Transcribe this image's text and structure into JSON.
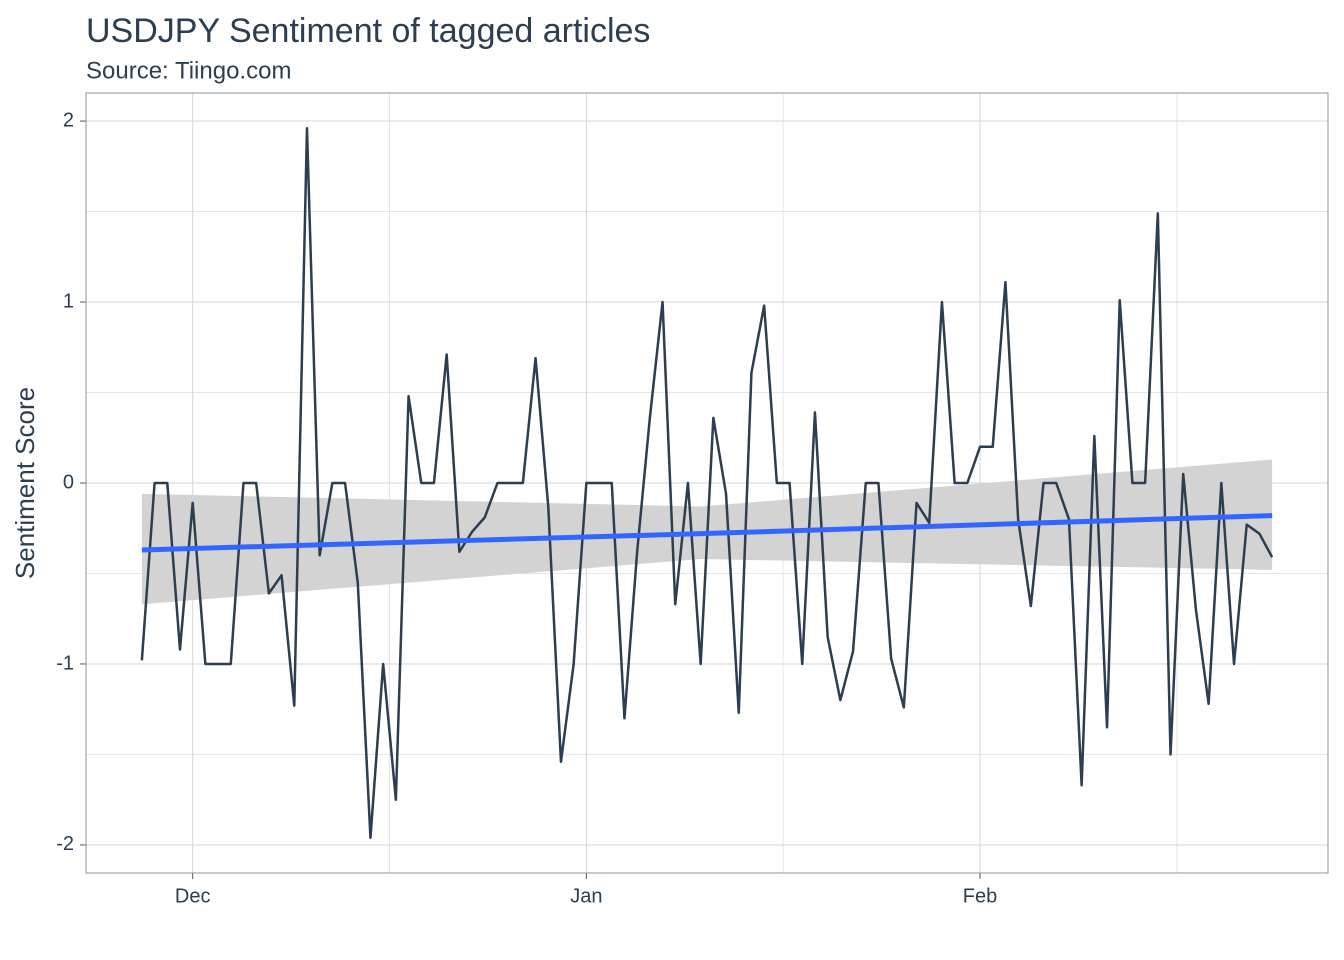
{
  "chart_data": {
    "type": "line",
    "title": "USDJPY Sentiment of tagged articles",
    "subtitle": "Source: Tiingo.com",
    "y_label": "Sentiment Score",
    "x": [
      -4,
      -3,
      -2,
      -1,
      0,
      1,
      2,
      3,
      4,
      5,
      6,
      7,
      8,
      9,
      10,
      11,
      12,
      13,
      14,
      15,
      16,
      17,
      18,
      19,
      20,
      21,
      22,
      23,
      24,
      25,
      26,
      27,
      28,
      29,
      30,
      31,
      32,
      33,
      34,
      35,
      36,
      37,
      38,
      39,
      40,
      41,
      42,
      43,
      44,
      45,
      46,
      47,
      48,
      49,
      50,
      51,
      52,
      53,
      54,
      55,
      56,
      57,
      58,
      59,
      60,
      61,
      62,
      63,
      64,
      65,
      66,
      67,
      68,
      69,
      70,
      71,
      72,
      73,
      74,
      75,
      76,
      77,
      78,
      79,
      80,
      81,
      82,
      83,
      84,
      85
    ],
    "series": [
      {
        "color": "#2c3e50",
        "values": [
          -0.98,
          0,
          0,
          -0.92,
          -0.11,
          -1,
          -1,
          -1,
          0,
          0,
          -0.61,
          -0.51,
          -1.23,
          1.96,
          -0.4,
          0,
          0,
          -0.55,
          -1.96,
          -1,
          -1.75,
          0.48,
          0,
          0,
          0.71,
          -0.38,
          -0.27,
          -0.19,
          0,
          0,
          0,
          0.69,
          -0.13,
          -1.54,
          -1,
          0,
          0,
          0,
          -1.3,
          -0.38,
          0.36,
          1,
          -0.67,
          0,
          -1,
          0.36,
          -0.06,
          -1.27,
          0.61,
          0.98,
          0,
          0,
          -1,
          0.39,
          -0.85,
          -1.2,
          -0.93,
          0,
          0,
          -0.97,
          -1.24,
          -0.11,
          -0.22,
          1,
          0,
          0,
          0.2,
          0.2,
          1.11,
          -0.2,
          -0.68,
          0,
          0,
          -0.2,
          -1.67,
          0.26,
          -1.35,
          1.01,
          0,
          0,
          1.49,
          -1.5,
          0.05,
          -0.7,
          -1.22,
          0,
          -1,
          -0.23,
          -0.28,
          -0.41
        ]
      }
    ],
    "smooth": {
      "color": "#3366ff",
      "band_color": "#d3d3d3",
      "x": [
        -4,
        40,
        85
      ],
      "values": [
        -0.37,
        -0.28,
        -0.18
      ],
      "lower": [
        -0.67,
        -0.42,
        -0.48
      ],
      "upper": [
        -0.06,
        -0.13,
        0.13
      ]
    },
    "xlim": [
      -8.4,
      89.4
    ],
    "xticks": [
      {
        "value": 0,
        "label": "Dec"
      },
      {
        "value": 31,
        "label": "Jan"
      },
      {
        "value": 62,
        "label": "Feb"
      }
    ],
    "ylim": [
      -2.155,
      2.155
    ],
    "yticks": [
      -2,
      -1,
      0,
      1,
      2
    ],
    "grid": true
  }
}
